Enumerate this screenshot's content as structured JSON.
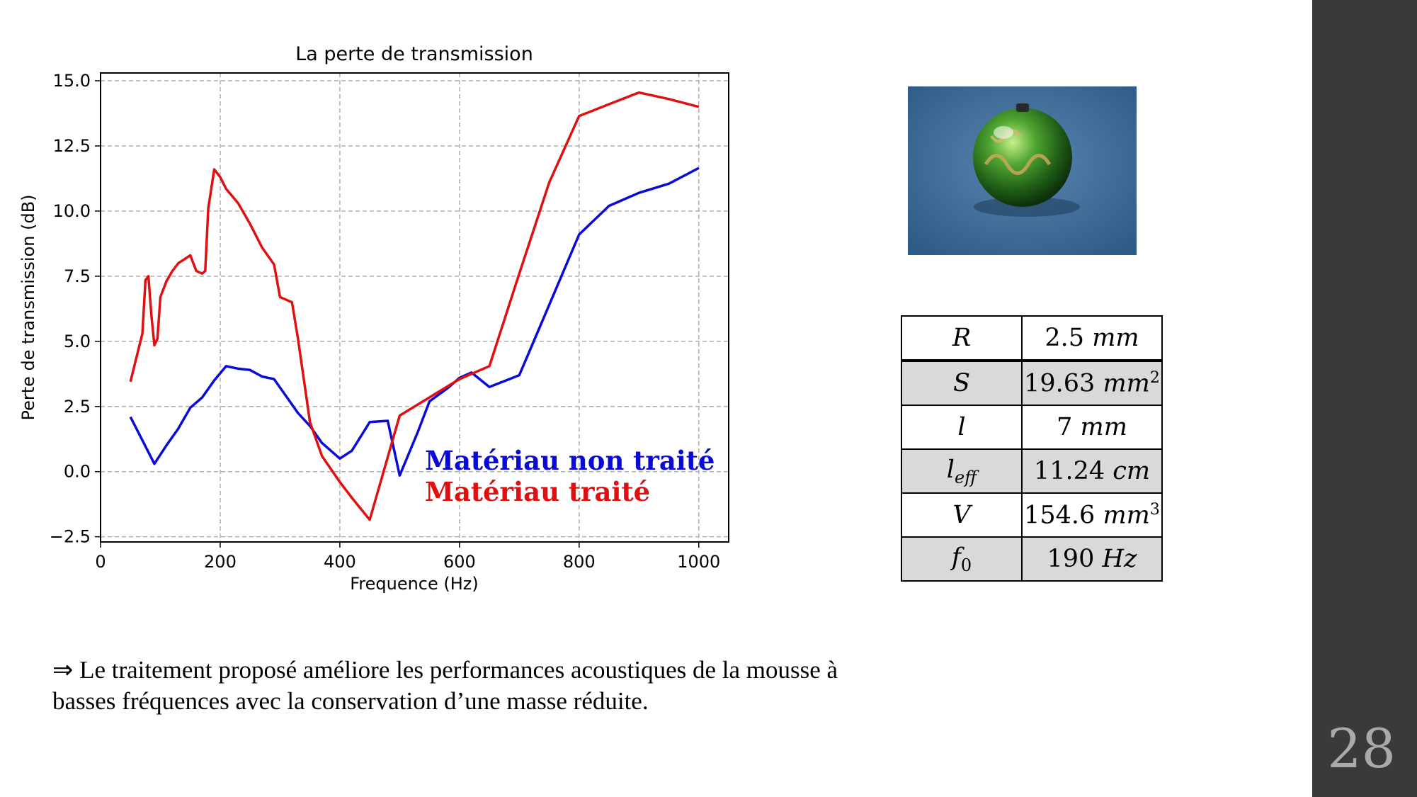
{
  "slide": {
    "page_number": "28"
  },
  "chart_data": {
    "type": "line",
    "title": "La perte de transmission",
    "xlabel": "Frequence (Hz)",
    "ylabel": "Perte de transmission (dB)",
    "xlim": [
      0,
      1050
    ],
    "ylim": [
      -2.7,
      15.3
    ],
    "xticks": [
      0,
      200,
      400,
      600,
      800,
      1000
    ],
    "xtick_labels": [
      "0",
      "200",
      "400",
      "600",
      "800",
      "1000"
    ],
    "yticks": [
      -2.5,
      0,
      2.5,
      5,
      7.5,
      10,
      12.5,
      15
    ],
    "ytick_labels": [
      "−2.5",
      "0.0",
      "2.5",
      "5.0",
      "7.5",
      "10.0",
      "12.5",
      "15.0"
    ],
    "grid": true,
    "series": [
      {
        "name": "Matériau non traité",
        "color": "#0a0ad8",
        "x": [
          50,
          70,
          90,
          110,
          130,
          150,
          170,
          190,
          210,
          230,
          250,
          270,
          290,
          310,
          330,
          350,
          370,
          400,
          420,
          450,
          480,
          500,
          530,
          550,
          580,
          600,
          620,
          650,
          700,
          750,
          800,
          850,
          900,
          950,
          1000
        ],
        "y": [
          2.1,
          1.2,
          0.3,
          1.0,
          1.65,
          2.45,
          2.85,
          3.5,
          4.05,
          3.95,
          3.9,
          3.65,
          3.55,
          2.9,
          2.25,
          1.75,
          1.1,
          0.5,
          0.8,
          1.9,
          1.95,
          -0.15,
          1.5,
          2.7,
          3.2,
          3.6,
          3.8,
          3.25,
          3.7,
          6.4,
          9.1,
          10.2,
          10.7,
          11.05,
          11.65
        ]
      },
      {
        "name": "Matériau traité",
        "color": "#e01010",
        "x": [
          50,
          70,
          75,
          80,
          85,
          90,
          95,
          100,
          110,
          120,
          130,
          140,
          150,
          160,
          170,
          175,
          180,
          190,
          200,
          210,
          230,
          250,
          270,
          290,
          300,
          320,
          330,
          350,
          370,
          400,
          420,
          450,
          500,
          550,
          600,
          650,
          700,
          750,
          800,
          850,
          900,
          950,
          1000
        ],
        "y": [
          3.45,
          5.3,
          7.35,
          7.5,
          6.0,
          4.85,
          5.1,
          6.7,
          7.3,
          7.7,
          8.0,
          8.15,
          8.3,
          7.7,
          7.6,
          7.7,
          10.1,
          11.6,
          11.3,
          10.85,
          10.3,
          9.5,
          8.6,
          7.95,
          6.7,
          6.5,
          5.1,
          1.9,
          0.6,
          -0.4,
          -1.0,
          -1.85,
          2.15,
          2.85,
          3.55,
          4.05,
          7.6,
          11.1,
          13.65,
          14.1,
          14.55,
          14.3,
          14.0
        ]
      }
    ]
  },
  "legend": {
    "untreated": "Matériau non traité",
    "treated": "Matériau traité"
  },
  "photo": {
    "subject": "green-christmas-ornament-ball"
  },
  "table": {
    "rows": [
      {
        "symbol": "R",
        "value": "2.5",
        "unit": "mm"
      },
      {
        "symbol": "S",
        "value": "19.63",
        "unit": "mm",
        "sup": "2"
      },
      {
        "symbol": "l",
        "value": "7",
        "unit": "mm"
      },
      {
        "symbol": "l",
        "sub": "eff",
        "value": "11.24",
        "unit": "cm"
      },
      {
        "symbol": "V",
        "value": "154.6",
        "unit": "mm",
        "sup": "3"
      },
      {
        "symbol": "f",
        "sub": "0",
        "value": "190",
        "unit": "Hz"
      }
    ]
  },
  "conclusion": {
    "arrow": "⇒",
    "text": "Le traitement proposé améliore les performances acoustiques de la mousse à basses fréquences avec la conservation d’une masse réduite."
  }
}
